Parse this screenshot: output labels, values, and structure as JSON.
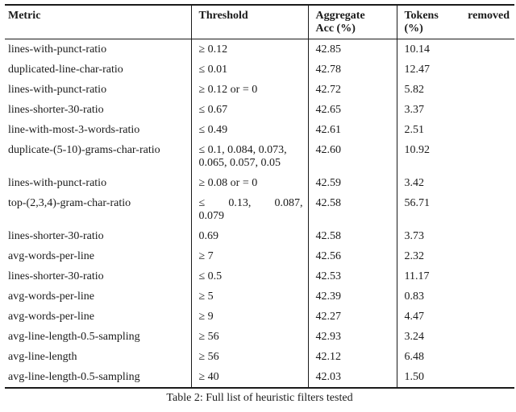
{
  "table": {
    "caption": "Table 2: Full list of heuristic filters tested",
    "headers": {
      "metric": "Metric",
      "threshold": "Threshold",
      "acc_line1": "Aggregate",
      "acc_line2": "Acc (%)",
      "tokens_word1": "Tokens",
      "tokens_word2": "removed",
      "tokens_line2": "(%)"
    },
    "rows": [
      {
        "metric": "lines-with-punct-ratio",
        "threshold": "≥ 0.12",
        "acc": "42.85",
        "tokens": "10.14"
      },
      {
        "metric": "duplicated-line-char-ratio",
        "threshold": "≤ 0.01",
        "acc": "42.78",
        "tokens": "12.47"
      },
      {
        "metric": "lines-with-punct-ratio",
        "threshold": "≥ 0.12 or = 0",
        "acc": "42.72",
        "tokens": "5.82"
      },
      {
        "metric": "lines-shorter-30-ratio",
        "threshold": "≤ 0.67",
        "acc": "42.65",
        "tokens": "3.37"
      },
      {
        "metric": "line-with-most-3-words-ratio",
        "threshold": "≤ 0.49",
        "acc": "42.61",
        "tokens": "2.51"
      },
      {
        "metric": "duplicate-(5-10)-grams-char-ratio",
        "threshold": "≤ 0.1, 0.084, 0.073,\n0.065, 0.057, 0.05",
        "acc": "42.60",
        "tokens": "10.92"
      },
      {
        "metric": "lines-with-punct-ratio",
        "threshold": "≥ 0.08 or = 0",
        "acc": "42.59",
        "tokens": "3.42"
      },
      {
        "metric": "top-(2,3,4)-gram-char-ratio",
        "threshold_parts": [
          "≤",
          "0.13,",
          "0.087,"
        ],
        "threshold_line2": "0.079",
        "acc": "42.58",
        "tokens": "56.71"
      },
      {
        "metric": "lines-shorter-30-ratio",
        "threshold": "0.69",
        "acc": "42.58",
        "tokens": "3.73"
      },
      {
        "metric": "avg-words-per-line",
        "threshold": "≥ 7",
        "acc": "42.56",
        "tokens": "2.32"
      },
      {
        "metric": "lines-shorter-30-ratio",
        "threshold": "≤ 0.5",
        "acc": "42.53",
        "tokens": "11.17"
      },
      {
        "metric": "avg-words-per-line",
        "threshold": "≥ 5",
        "acc": "42.39",
        "tokens": "0.83"
      },
      {
        "metric": "avg-words-per-line",
        "threshold": "≥ 9",
        "acc": "42.27",
        "tokens": "4.47"
      },
      {
        "metric": "avg-line-length-0.5-sampling",
        "threshold": "≥ 56",
        "acc": "42.93",
        "tokens": "3.24"
      },
      {
        "metric": "avg-line-length",
        "threshold": "≥ 56",
        "acc": "42.12",
        "tokens": "6.48"
      },
      {
        "metric": "avg-line-length-0.5-sampling",
        "threshold": "≥ 40",
        "acc": "42.03",
        "tokens": "1.50"
      }
    ],
    "colors": {
      "text": "#1a1a1a",
      "rule": "#1a1a1a",
      "background": "#ffffff"
    }
  }
}
